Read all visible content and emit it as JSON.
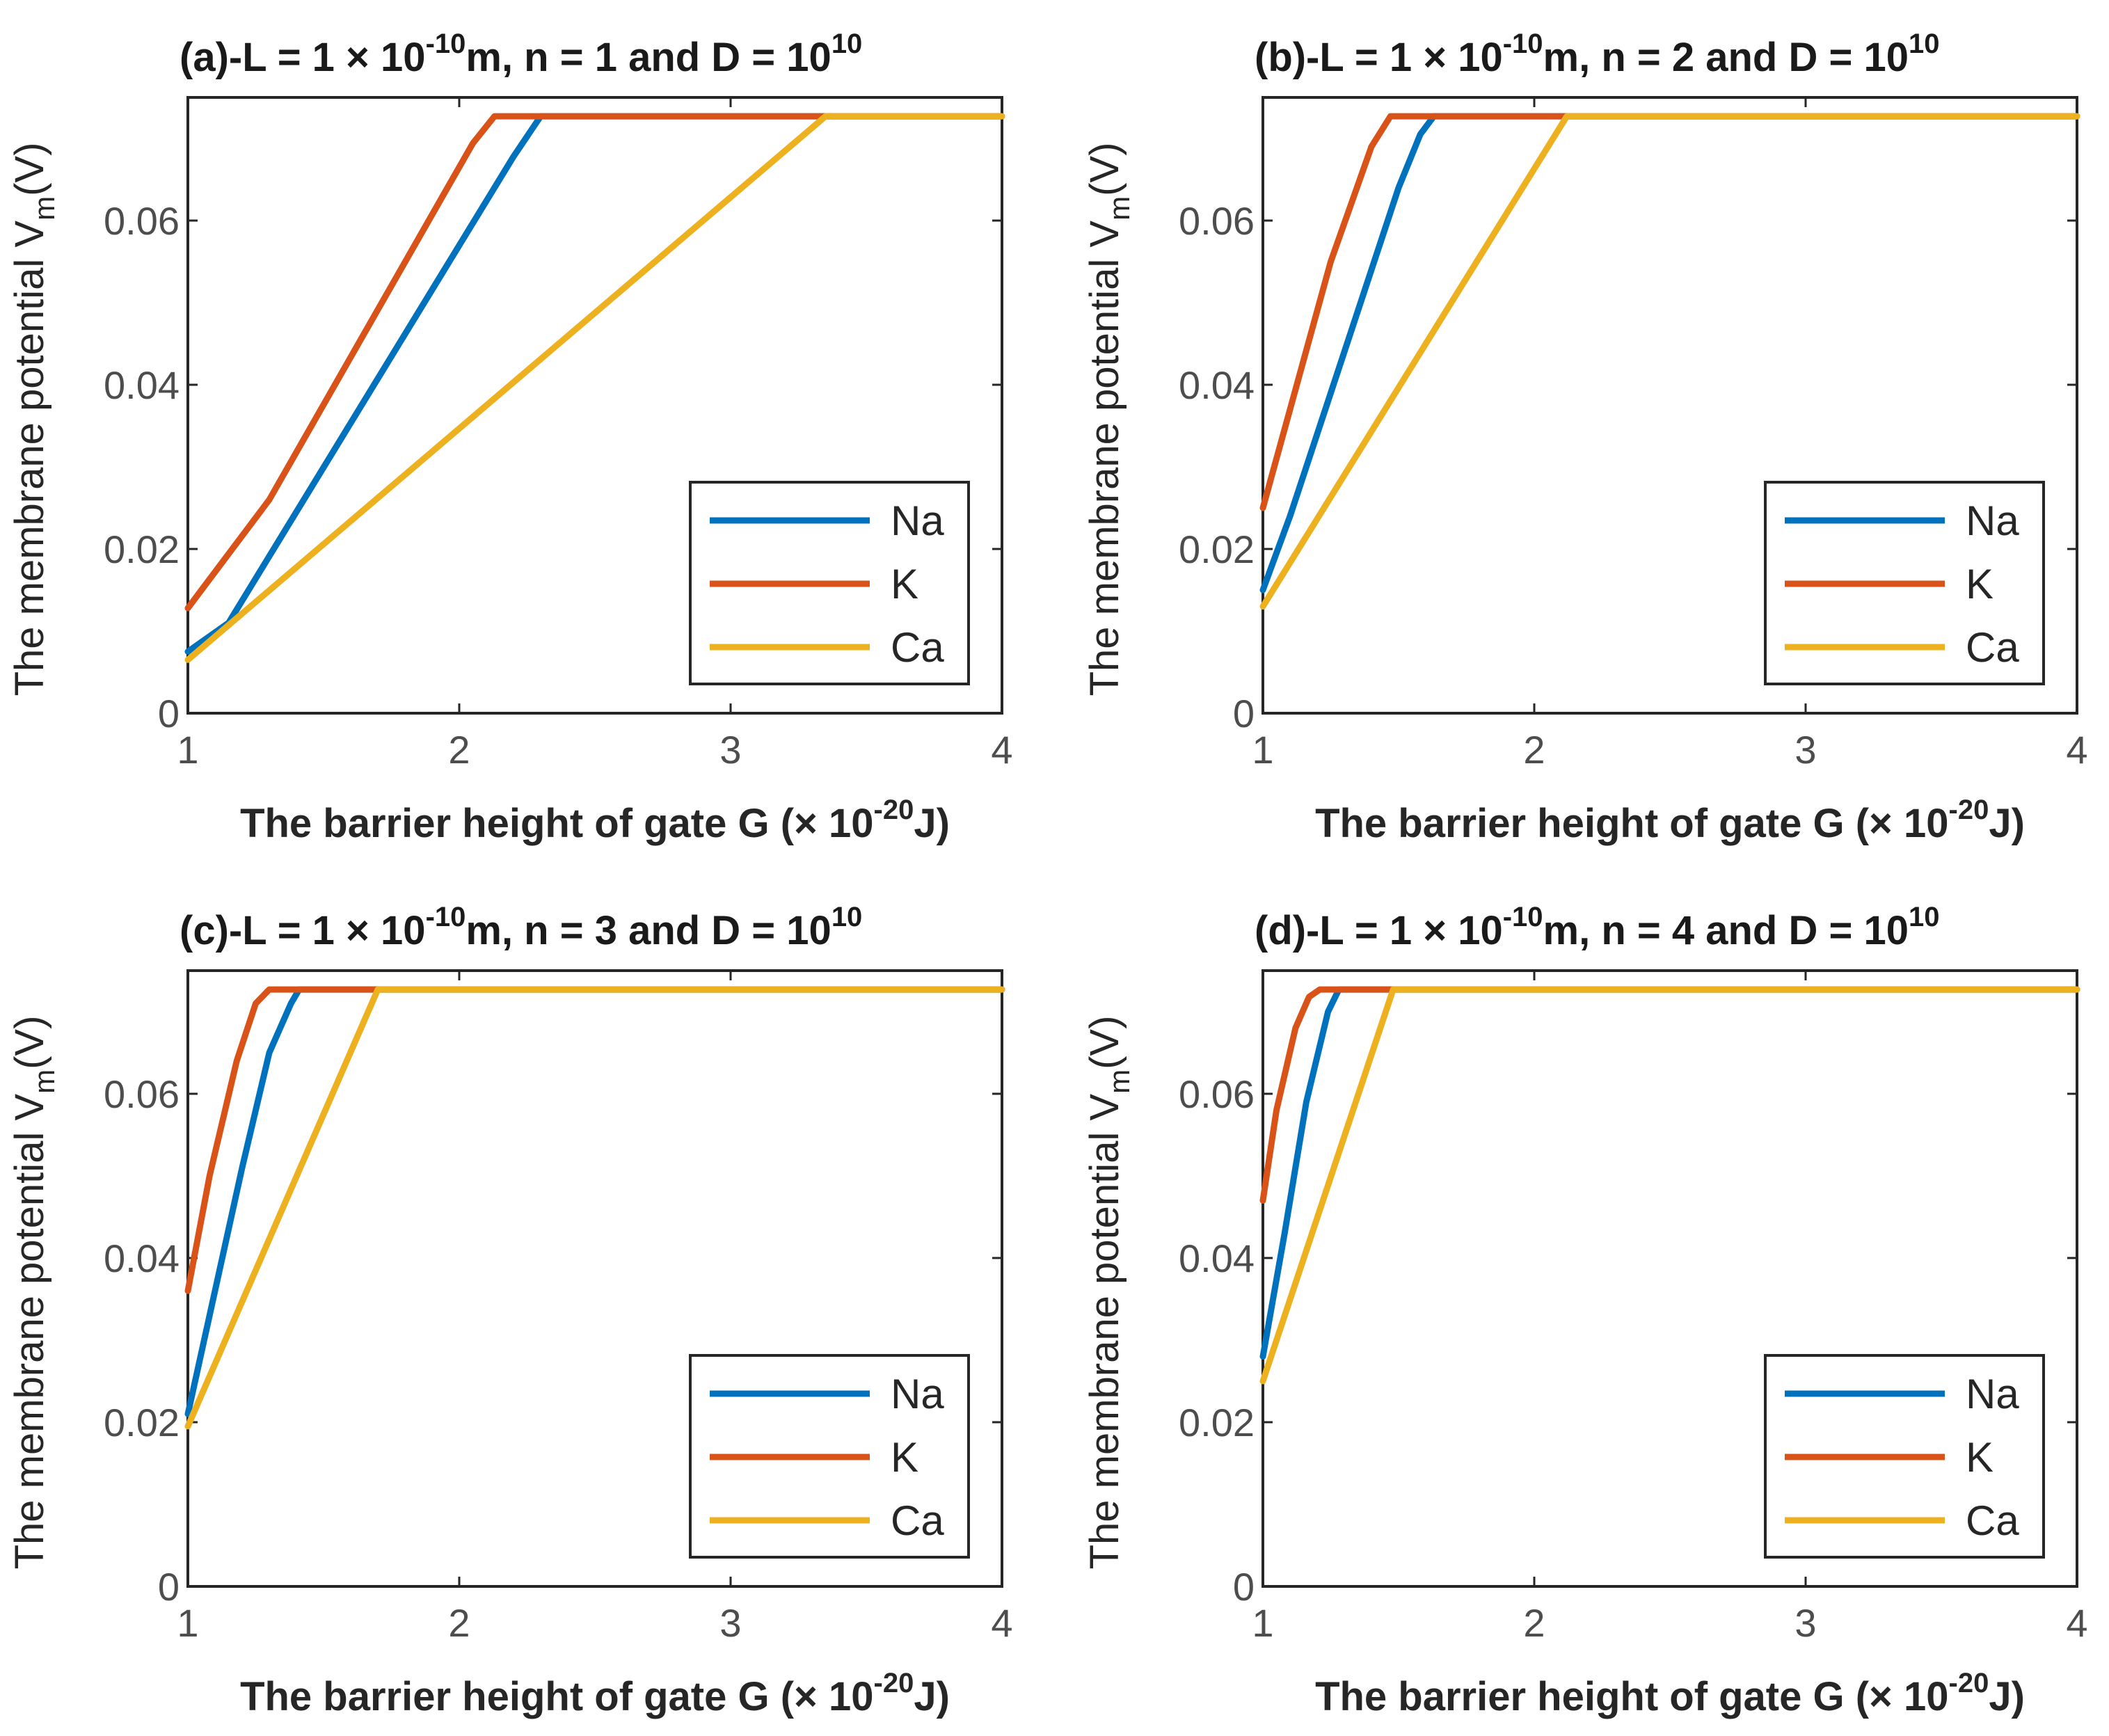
{
  "chart_data": [
    {
      "type": "line",
      "panel": "a",
      "title": {
        "prefix": "(a)-L = 1 × 10",
        "exp1": "-10",
        "mid": "m, n = 1 and  D = 10",
        "exp2": "10"
      },
      "xlabel": {
        "prefix": "The barrier height of gate G (× 10",
        "exp": "-20",
        "suffix": "J)"
      },
      "ylabel": {
        "prefix": "The membrane potential V",
        "sub": "m",
        "suffix": "(V)"
      },
      "xlim": [
        1,
        4
      ],
      "ylim": [
        0,
        0.075
      ],
      "xticks": [
        "1",
        "2",
        "3",
        "4"
      ],
      "xtick_values": [
        1,
        2,
        3,
        4
      ],
      "yticks": [
        "0",
        "0.02",
        "0.04",
        "0.06"
      ],
      "ytick_values": [
        0,
        0.02,
        0.04,
        0.06
      ],
      "legend": "bottom-right",
      "series": [
        {
          "name": "Na",
          "color": "#0072BD",
          "x": [
            1,
            1.15,
            2.2,
            2.3,
            4
          ],
          "y": [
            0.0075,
            0.011,
            0.0678,
            0.0727,
            0.0727
          ]
        },
        {
          "name": "K",
          "color": "#D95319",
          "x": [
            1,
            1.3,
            2.05,
            2.13,
            4
          ],
          "y": [
            0.0128,
            0.026,
            0.0694,
            0.0727,
            0.0727
          ]
        },
        {
          "name": "Ca",
          "color": "#EDB120",
          "x": [
            1,
            3.35,
            4
          ],
          "y": [
            0.0065,
            0.0727,
            0.0727
          ]
        }
      ]
    },
    {
      "type": "line",
      "panel": "b",
      "title": {
        "prefix": "(b)-L = 1 × 10",
        "exp1": "-10",
        "mid": "m, n = 2 and  D = 10",
        "exp2": "10"
      },
      "xlabel": {
        "prefix": "The barrier height of gate G (× 10",
        "exp": "-20",
        "suffix": "J)"
      },
      "ylabel": {
        "prefix": "The membrane potential V",
        "sub": "m",
        "suffix": "(V)"
      },
      "xlim": [
        1,
        4
      ],
      "ylim": [
        0,
        0.075
      ],
      "xticks": [
        "1",
        "2",
        "3",
        "4"
      ],
      "xtick_values": [
        1,
        2,
        3,
        4
      ],
      "yticks": [
        "0",
        "0.02",
        "0.04",
        "0.06"
      ],
      "ytick_values": [
        0,
        0.02,
        0.04,
        0.06
      ],
      "legend": "bottom-right",
      "series": [
        {
          "name": "Na",
          "color": "#0072BD",
          "x": [
            1,
            1.1,
            1.3,
            1.5,
            1.58,
            1.63,
            4
          ],
          "y": [
            0.015,
            0.024,
            0.044,
            0.064,
            0.0705,
            0.0727,
            0.0727
          ]
        },
        {
          "name": "K",
          "color": "#D95319",
          "x": [
            1,
            1.1,
            1.25,
            1.4,
            1.47,
            4
          ],
          "y": [
            0.025,
            0.037,
            0.055,
            0.069,
            0.0727,
            0.0727
          ]
        },
        {
          "name": "Ca",
          "color": "#EDB120",
          "x": [
            1,
            2.12,
            4
          ],
          "y": [
            0.013,
            0.0727,
            0.0727
          ]
        }
      ]
    },
    {
      "type": "line",
      "panel": "c",
      "title": {
        "prefix": "(c)-L = 1 × 10",
        "exp1": "-10",
        "mid": "m, n = 3 and  D = 10",
        "exp2": "10"
      },
      "xlabel": {
        "prefix": "The barrier height of gate G (× 10",
        "exp": "-20",
        "suffix": "J)"
      },
      "ylabel": {
        "prefix": "The membrane potential V",
        "sub": "m",
        "suffix": "(V)"
      },
      "xlim": [
        1,
        4
      ],
      "ylim": [
        0,
        0.075
      ],
      "xticks": [
        "1",
        "2",
        "3",
        "4"
      ],
      "xtick_values": [
        1,
        2,
        3,
        4
      ],
      "yticks": [
        "0",
        "0.02",
        "0.04",
        "0.06"
      ],
      "ytick_values": [
        0,
        0.02,
        0.04,
        0.06
      ],
      "legend": "bottom-right",
      "series": [
        {
          "name": "Na",
          "color": "#0072BD",
          "x": [
            1,
            1.1,
            1.2,
            1.3,
            1.38,
            1.41,
            4
          ],
          "y": [
            0.021,
            0.036,
            0.051,
            0.065,
            0.071,
            0.0727,
            0.0727
          ]
        },
        {
          "name": "K",
          "color": "#D95319",
          "x": [
            1,
            1.08,
            1.18,
            1.25,
            1.3,
            4
          ],
          "y": [
            0.036,
            0.05,
            0.064,
            0.071,
            0.0727,
            0.0727
          ]
        },
        {
          "name": "Ca",
          "color": "#EDB120",
          "x": [
            1,
            1.7,
            4
          ],
          "y": [
            0.0195,
            0.0727,
            0.0727
          ]
        }
      ]
    },
    {
      "type": "line",
      "panel": "d",
      "title": {
        "prefix": "(d)-L = 1 × 10",
        "exp1": "-10",
        "mid": "m, n = 4 and  D = 10",
        "exp2": "10"
      },
      "xlabel": {
        "prefix": "The barrier height of gate G (× 10",
        "exp": "-20",
        "suffix": "J)"
      },
      "ylabel": {
        "prefix": "The membrane potential V",
        "sub": "m",
        "suffix": "(V)"
      },
      "xlim": [
        1,
        4
      ],
      "ylim": [
        0,
        0.075
      ],
      "xticks": [
        "1",
        "2",
        "3",
        "4"
      ],
      "xtick_values": [
        1,
        2,
        3,
        4
      ],
      "yticks": [
        "0",
        "0.02",
        "0.04",
        "0.06"
      ],
      "ytick_values": [
        0,
        0.02,
        0.04,
        0.06
      ],
      "legend": "bottom-right",
      "series": [
        {
          "name": "Na",
          "color": "#0072BD",
          "x": [
            1,
            1.08,
            1.16,
            1.24,
            1.28,
            4
          ],
          "y": [
            0.028,
            0.043,
            0.059,
            0.07,
            0.0727,
            0.0727
          ]
        },
        {
          "name": "K",
          "color": "#D95319",
          "x": [
            1,
            1.05,
            1.12,
            1.17,
            1.21,
            4
          ],
          "y": [
            0.047,
            0.058,
            0.068,
            0.0718,
            0.0727,
            0.0727
          ]
        },
        {
          "name": "Ca",
          "color": "#EDB120",
          "x": [
            1,
            1.48,
            4
          ],
          "y": [
            0.025,
            0.0727,
            0.0727
          ]
        }
      ]
    }
  ]
}
